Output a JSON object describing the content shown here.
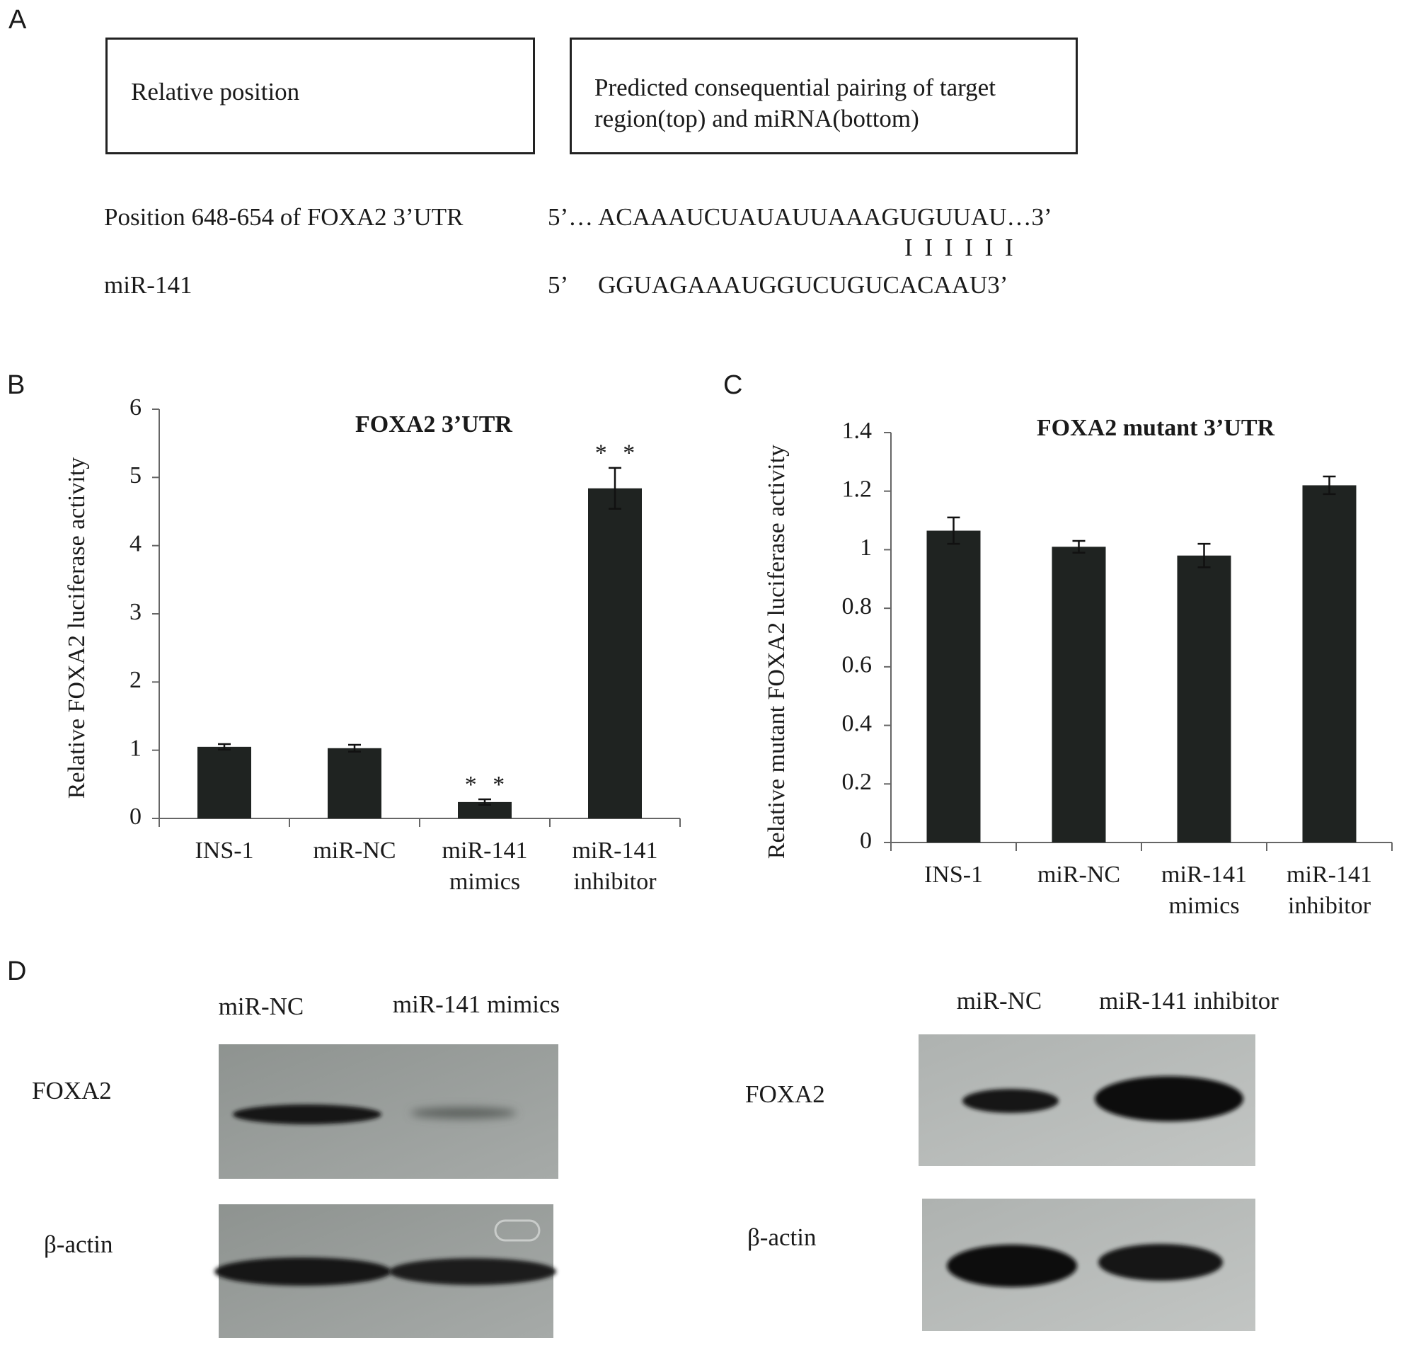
{
  "panel_labels": [
    "A",
    "B",
    "C",
    "D"
  ],
  "panel_a": {
    "headers": [
      "Relative position",
      "Predicted consequential pairing of target region(top) and miRNA(bottom)"
    ],
    "rows": [
      {
        "label": "Position 648-654 of FOXA2 3’UTR",
        "prefix": "5’…",
        "sequence": "ACAAAUCUAUAUUAAAGUGUUAU…3’"
      },
      {
        "label": "miR-141",
        "prefix": "5’",
        "sequence": "GGUAGAAAUGGUCUGUCACAAU3’"
      }
    ],
    "pairing": "I I I I I I"
  },
  "chart_data": [
    {
      "type": "bar",
      "title": "FOXA2 3’UTR",
      "y_label": "Relative FOXA2 luciferase activity",
      "categories": [
        "INS-1",
        "miR-NC",
        "miR-141 mimics",
        "miR-141 inhibitor"
      ],
      "values": [
        1.05,
        1.03,
        0.24,
        4.84
      ],
      "errors": [
        0.04,
        0.05,
        0.04,
        0.3
      ],
      "significance": [
        null,
        null,
        "* *",
        "* *"
      ],
      "color": "#1f2321",
      "ylim": [
        0,
        6
      ],
      "yticks": [
        0,
        1,
        2,
        3,
        4,
        5,
        6
      ],
      "grid": false
    },
    {
      "type": "bar",
      "title": "FOXA2 mutant 3’UTR",
      "y_label": "Relative mutant FOXA2 luciferase activity",
      "categories": [
        "INS-1",
        "miR-NC",
        "miR-141 mimics",
        "miR-141 inhibitor"
      ],
      "values": [
        1.065,
        1.01,
        0.98,
        1.22
      ],
      "errors": [
        0.045,
        0.02,
        0.04,
        0.03
      ],
      "color": "#1f2321",
      "ylim": [
        0,
        1.4
      ],
      "yticks": [
        0,
        0.2,
        0.4,
        0.6,
        0.8,
        1,
        1.2,
        1.4
      ],
      "grid": false
    }
  ],
  "panel_d": {
    "blots": [
      {
        "lanes": [
          "miR-NC",
          "miR-141 mimics"
        ],
        "rows": [
          "FOXA2",
          "β-actin"
        ]
      },
      {
        "lanes": [
          "miR-NC",
          "miR-141 inhibitor"
        ],
        "rows": [
          "FOXA2",
          "β-actin"
        ]
      }
    ]
  }
}
